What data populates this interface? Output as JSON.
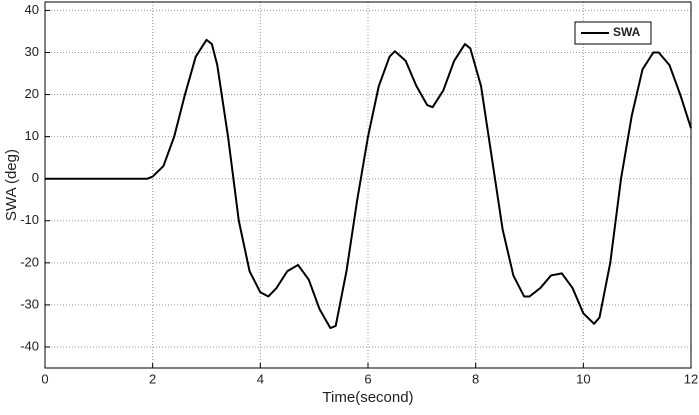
{
  "chart_data": {
    "type": "line",
    "x_label": "Time(second)",
    "y_label": "SWA (deg)",
    "x": [
      0,
      0.5,
      1.0,
      1.5,
      1.9,
      2.0,
      2.2,
      2.4,
      2.6,
      2.8,
      3.0,
      3.1,
      3.2,
      3.4,
      3.6,
      3.8,
      4.0,
      4.15,
      4.3,
      4.5,
      4.7,
      4.9,
      5.1,
      5.3,
      5.4,
      5.6,
      5.8,
      6.0,
      6.2,
      6.4,
      6.5,
      6.7,
      6.9,
      7.1,
      7.2,
      7.4,
      7.6,
      7.8,
      7.9,
      8.1,
      8.3,
      8.5,
      8.7,
      8.9,
      9.0,
      9.2,
      9.4,
      9.6,
      9.8,
      10.0,
      10.2,
      10.3,
      10.5,
      10.7,
      10.9,
      11.1,
      11.3,
      11.4,
      11.6,
      11.8,
      12.0
    ],
    "series": [
      {
        "name": "SWA",
        "color": "#000000",
        "values": [
          0,
          0,
          0,
          0,
          0,
          0.5,
          3,
          10,
          20,
          29,
          33,
          32,
          27,
          10,
          -10,
          -22,
          -27,
          -28,
          -26,
          -22,
          -20.5,
          -24,
          -31,
          -35.5,
          -35,
          -22,
          -5,
          10,
          22,
          29,
          30.3,
          28,
          22,
          17.5,
          17,
          21,
          28,
          32,
          31,
          22,
          5,
          -12,
          -23,
          -28,
          -28,
          -26,
          -23,
          -22.5,
          -26,
          -32,
          -34.5,
          -33,
          -20,
          0,
          15,
          26,
          30,
          30,
          27,
          20,
          12
        ]
      }
    ],
    "xlim": [
      0,
      12
    ],
    "xticks": [
      0,
      2,
      4,
      6,
      8,
      10,
      12
    ],
    "ylim": [
      -45,
      42
    ],
    "yticks": [
      -40,
      -30,
      -20,
      -10,
      0,
      10,
      20,
      30,
      40
    ],
    "grid": true,
    "legend": "upper right"
  }
}
